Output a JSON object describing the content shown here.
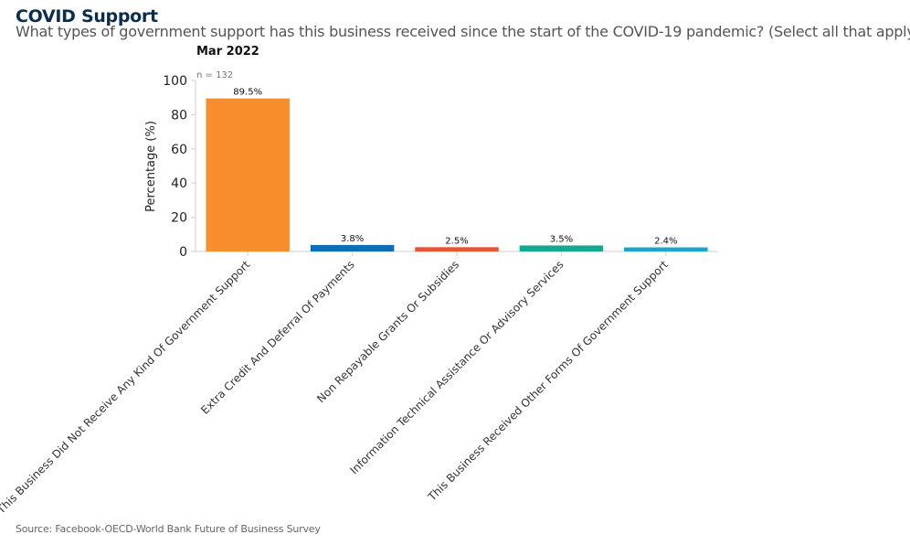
{
  "header": {
    "title": "COVID Support",
    "subtitle": "What types of government support has this business received since the start of the COVID-19 pandemic? (Select all that apply)"
  },
  "footer": {
    "source": "Source: Facebook-OECD-World Bank Future of Business Survey"
  },
  "chart_data": {
    "type": "bar",
    "title": "Mar 2022",
    "annotation": "n = 132",
    "xlabel": "",
    "ylabel": "Percentage (%)",
    "ylim": [
      0,
      100
    ],
    "yticks": [
      0,
      20,
      40,
      60,
      80,
      100
    ],
    "grid": false,
    "categories": [
      "This Business Did Not Receive Any Kind Of Government Support",
      "Extra Credit And Deferral Of Payments",
      "Non Repayable Grants Or Subsidies",
      "Information Technical Assistance Or Advisory Services",
      "This Business Received Other Forms Of Government Support"
    ],
    "values": [
      89.5,
      3.8,
      2.5,
      3.5,
      2.4
    ],
    "value_labels": [
      "89.5%",
      "3.8%",
      "2.5%",
      "3.5%",
      "2.4%"
    ],
    "colors": [
      "#f78e2b",
      "#0b6fb8",
      "#e95432",
      "#13a890",
      "#1ba3d6"
    ]
  }
}
